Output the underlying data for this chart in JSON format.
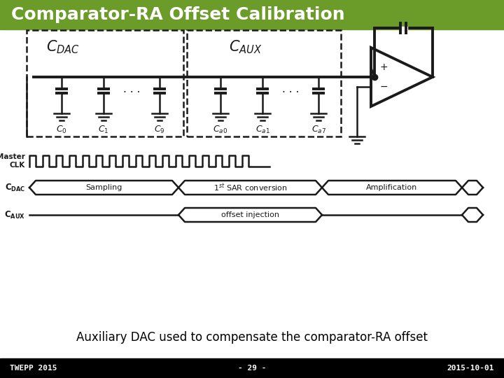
{
  "title": "Comparator-RA Offset Calibration",
  "title_bg_color": "#6b9c2a",
  "title_text_color": "#ffffff",
  "footer_bg_color": "#000000",
  "footer_text_color": "#ffffff",
  "footer_left": "TWEPP 2015",
  "footer_center": "- 29 -",
  "footer_right": "2015-10-01",
  "body_bg_color": "#ffffff",
  "subtitle_text": "Auxiliary DAC used to compensate the comparator-RA offset",
  "subtitle_color": "#000000",
  "subtitle_fontsize": 12,
  "title_fontsize": 18,
  "footer_fontsize": 8,
  "line_color": "#1a1a1a"
}
